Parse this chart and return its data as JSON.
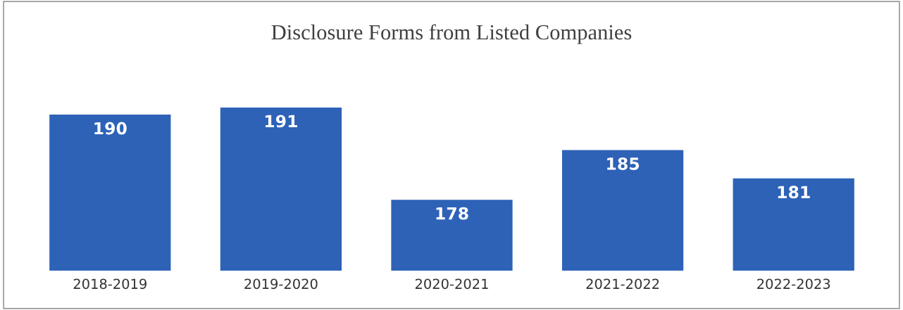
{
  "chart_data": {
    "type": "bar",
    "title": "Disclosure Forms from Listed Companies",
    "categories": [
      "2018-2019",
      "2019-2020",
      "2020-2021",
      "2021-2022",
      "2022-2023"
    ],
    "values": [
      190,
      191,
      178,
      185,
      181
    ],
    "color": "#2d62b7",
    "ylim": [
      168,
      191
    ],
    "data_labels": true,
    "grid": false,
    "tick_labels": "x"
  }
}
